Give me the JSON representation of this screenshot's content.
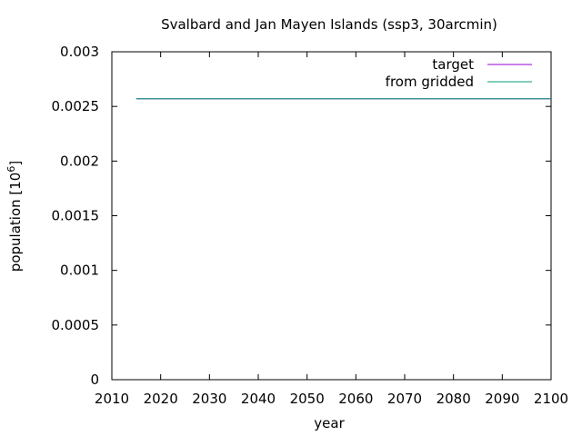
{
  "chart_data": {
    "type": "line",
    "title": "Svalbard and Jan Mayen Islands (ssp3, 30arcmin)",
    "xlabel": "year",
    "ylabel_main": "population [10",
    "ylabel_exp": "6",
    "ylabel_close": "]",
    "xlim": [
      2010,
      2100
    ],
    "ylim": [
      0,
      0.003
    ],
    "xticks": [
      2010,
      2020,
      2030,
      2040,
      2050,
      2060,
      2070,
      2080,
      2090,
      2100
    ],
    "yticks": [
      0,
      0.0005,
      0.001,
      0.0015,
      0.002,
      0.0025,
      0.003
    ],
    "ytick_labels": [
      "0",
      "0.0005",
      "0.001",
      "0.0015",
      "0.002",
      "0.0025",
      "0.003"
    ],
    "grid": false,
    "legend_position": "top-right",
    "series": [
      {
        "name": "target",
        "color": "#9400d3",
        "x": [
          2015,
          2100
        ],
        "y": [
          0.00257,
          0.00257
        ]
      },
      {
        "name": "from gridded",
        "color": "#009e73",
        "x": [
          2015,
          2100
        ],
        "y": [
          0.00257,
          0.00257
        ]
      }
    ]
  }
}
